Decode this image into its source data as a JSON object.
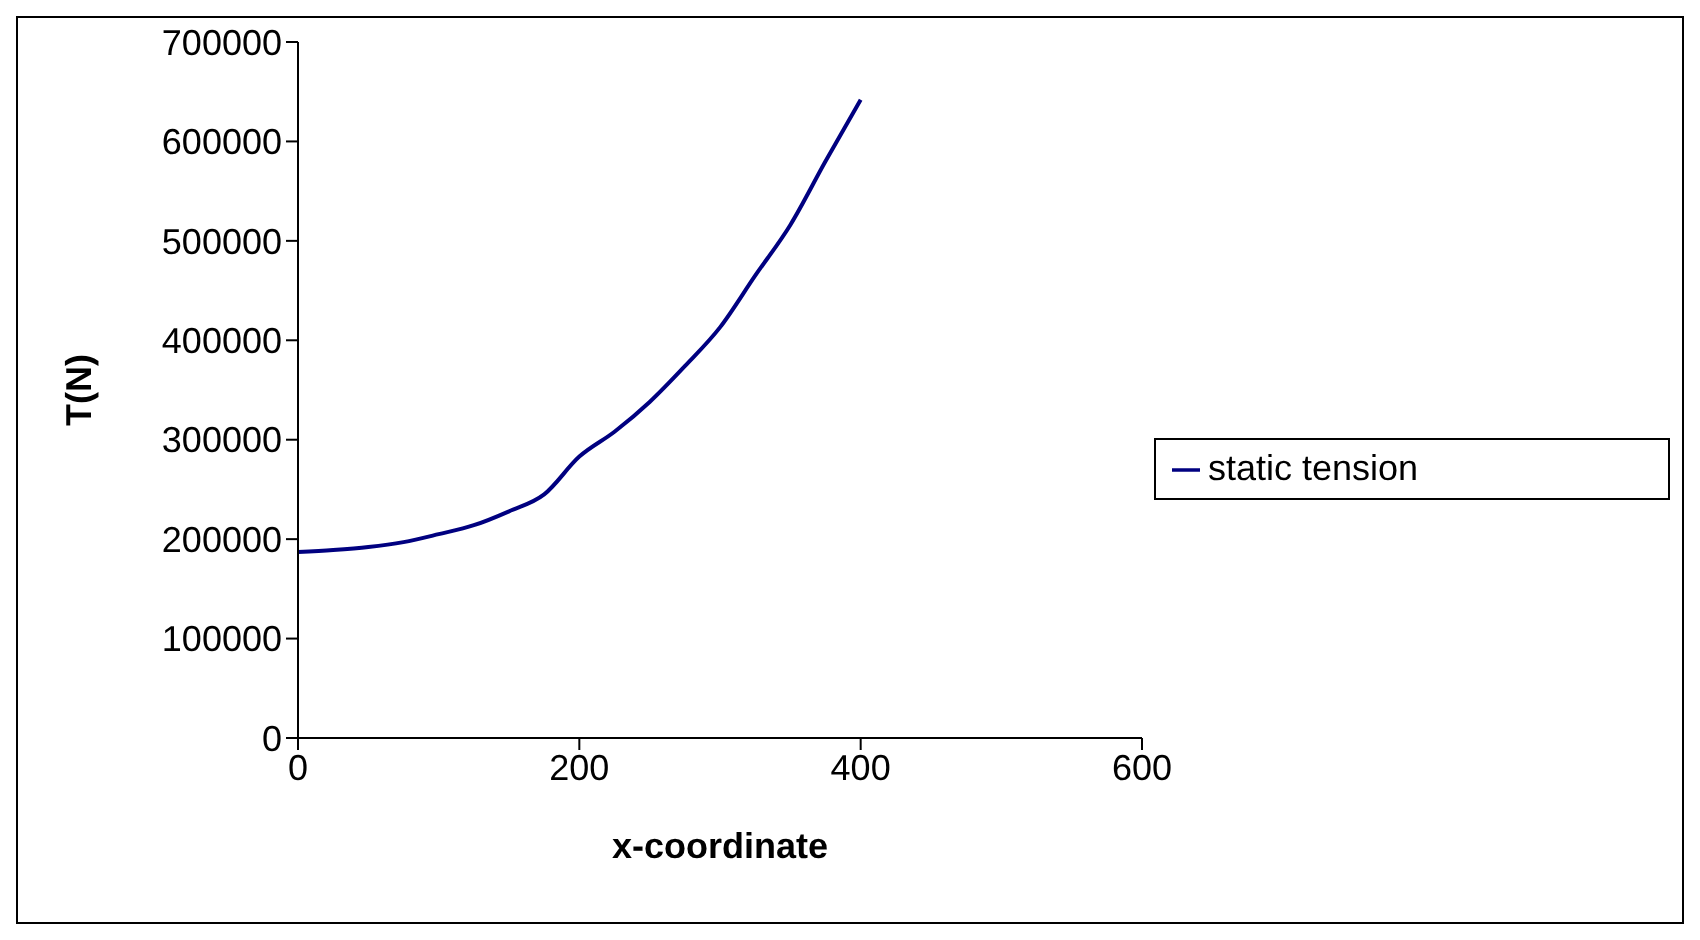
{
  "chart_data": {
    "type": "line",
    "xlabel": "x-coordinate",
    "ylabel": "T(N)",
    "x": [
      0,
      25,
      50,
      75,
      100,
      125,
      150,
      175,
      200,
      225,
      250,
      275,
      300,
      325,
      350,
      375,
      400
    ],
    "series": [
      {
        "name": "static tension",
        "color": "#000080",
        "values": [
          187000,
          189000,
          192000,
          197000,
          205000,
          214000,
          228000,
          245000,
          283000,
          308000,
          338000,
          374000,
          413000,
          465000,
          516000,
          580000,
          642000
        ]
      }
    ],
    "xlim": [
      0,
      600
    ],
    "xticks": [
      0,
      200,
      400,
      600
    ],
    "ylim": [
      0,
      700000
    ],
    "yticks": [
      0,
      100000,
      200000,
      300000,
      400000,
      500000,
      600000,
      700000
    ],
    "grid": false,
    "legend": "right",
    "marker": "none",
    "line_style": "solid"
  }
}
